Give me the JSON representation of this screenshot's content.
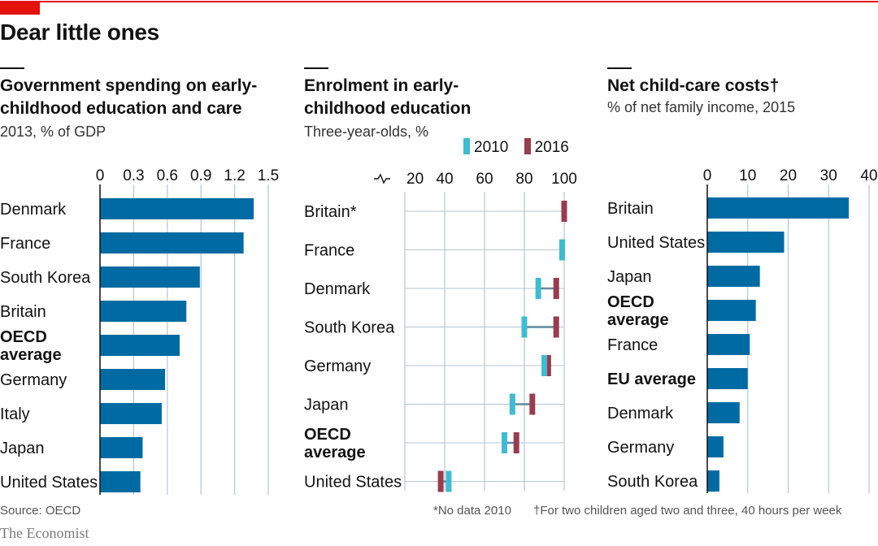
{
  "headline": "Dear little ones",
  "colors": {
    "bar": "#006ba2",
    "c2010": "#3ebcd2",
    "c2016": "#9a3b4f",
    "grid": "#b7c6cf",
    "connector": "#5f8a9e",
    "accent": "#e3120b"
  },
  "footer": {
    "source": "Source: OECD",
    "note1": "*No data 2010",
    "note2": "†For two children aged two and three, 40 hours per week"
  },
  "brand": "The Economist",
  "chart_data": [
    {
      "type": "bar",
      "title": "Government spending on early-childhood education and care",
      "title_lines": [
        "Government spending on early-",
        "childhood education and care"
      ],
      "subtitle": "2013, % of GDP",
      "categories": [
        "Denmark",
        "France",
        "South Korea",
        "Britain",
        "OECD average",
        "Germany",
        "Italy",
        "Japan",
        "United States"
      ],
      "label_lines": [
        [
          "Denmark"
        ],
        [
          "France"
        ],
        [
          "South Korea"
        ],
        [
          "Britain"
        ],
        [
          "OECD",
          "average"
        ],
        [
          "Germany"
        ],
        [
          "Italy"
        ],
        [
          "Japan"
        ],
        [
          "United States"
        ]
      ],
      "bold": [
        false,
        false,
        false,
        false,
        true,
        false,
        false,
        false,
        false
      ],
      "values": [
        1.37,
        1.28,
        0.89,
        0.77,
        0.71,
        0.58,
        0.55,
        0.38,
        0.36
      ],
      "ticks": [
        "0",
        "0.3",
        "0.6",
        "0.9",
        "1.2",
        "1.5"
      ],
      "xlim": [
        0,
        1.5
      ]
    },
    {
      "type": "dumbbell",
      "title": "Enrolment in early-childhood education",
      "title_lines": [
        "Enrolment in early-",
        "childhood education"
      ],
      "subtitle": "Three-year-olds, %",
      "legend": [
        "2010",
        "2016"
      ],
      "categories": [
        "Britain*",
        "France",
        "Denmark",
        "South Korea",
        "Germany",
        "Japan",
        "OECD average",
        "United States"
      ],
      "label_lines": [
        [
          "Britain*"
        ],
        [
          "France"
        ],
        [
          "Denmark"
        ],
        [
          "South Korea"
        ],
        [
          "Germany"
        ],
        [
          "Japan"
        ],
        [
          "OECD",
          "average"
        ],
        [
          "United States"
        ]
      ],
      "bold": [
        false,
        false,
        false,
        false,
        false,
        false,
        true,
        false
      ],
      "series": [
        {
          "name": "2010",
          "values": [
            null,
            99,
            87,
            80,
            90,
            74,
            70,
            42
          ]
        },
        {
          "name": "2016",
          "values": [
            100,
            99,
            96,
            96,
            92,
            84,
            76,
            38
          ]
        }
      ],
      "ticks": [
        "20",
        "40",
        "60",
        "80",
        "100"
      ],
      "xlim": [
        20,
        100
      ],
      "axis_break": true
    },
    {
      "type": "bar",
      "title": "Net child-care costs†",
      "title_lines": [
        "Net child-care costs†"
      ],
      "subtitle": "% of net family income, 2015",
      "categories": [
        "Britain",
        "United States",
        "Japan",
        "OECD average",
        "France",
        "EU average",
        "Denmark",
        "Germany",
        "South Korea"
      ],
      "label_lines": [
        [
          "Britain"
        ],
        [
          "United States"
        ],
        [
          "Japan"
        ],
        [
          "OECD",
          "average"
        ],
        [
          "France"
        ],
        [
          "EU average"
        ],
        [
          "Denmark"
        ],
        [
          "Germany"
        ],
        [
          "South Korea"
        ]
      ],
      "bold": [
        false,
        false,
        false,
        true,
        false,
        true,
        false,
        false,
        false
      ],
      "values": [
        35,
        19,
        13,
        12,
        10.5,
        10,
        8,
        4,
        3
      ],
      "ticks": [
        "0",
        "10",
        "20",
        "30",
        "40"
      ],
      "xlim": [
        0,
        40
      ]
    }
  ]
}
